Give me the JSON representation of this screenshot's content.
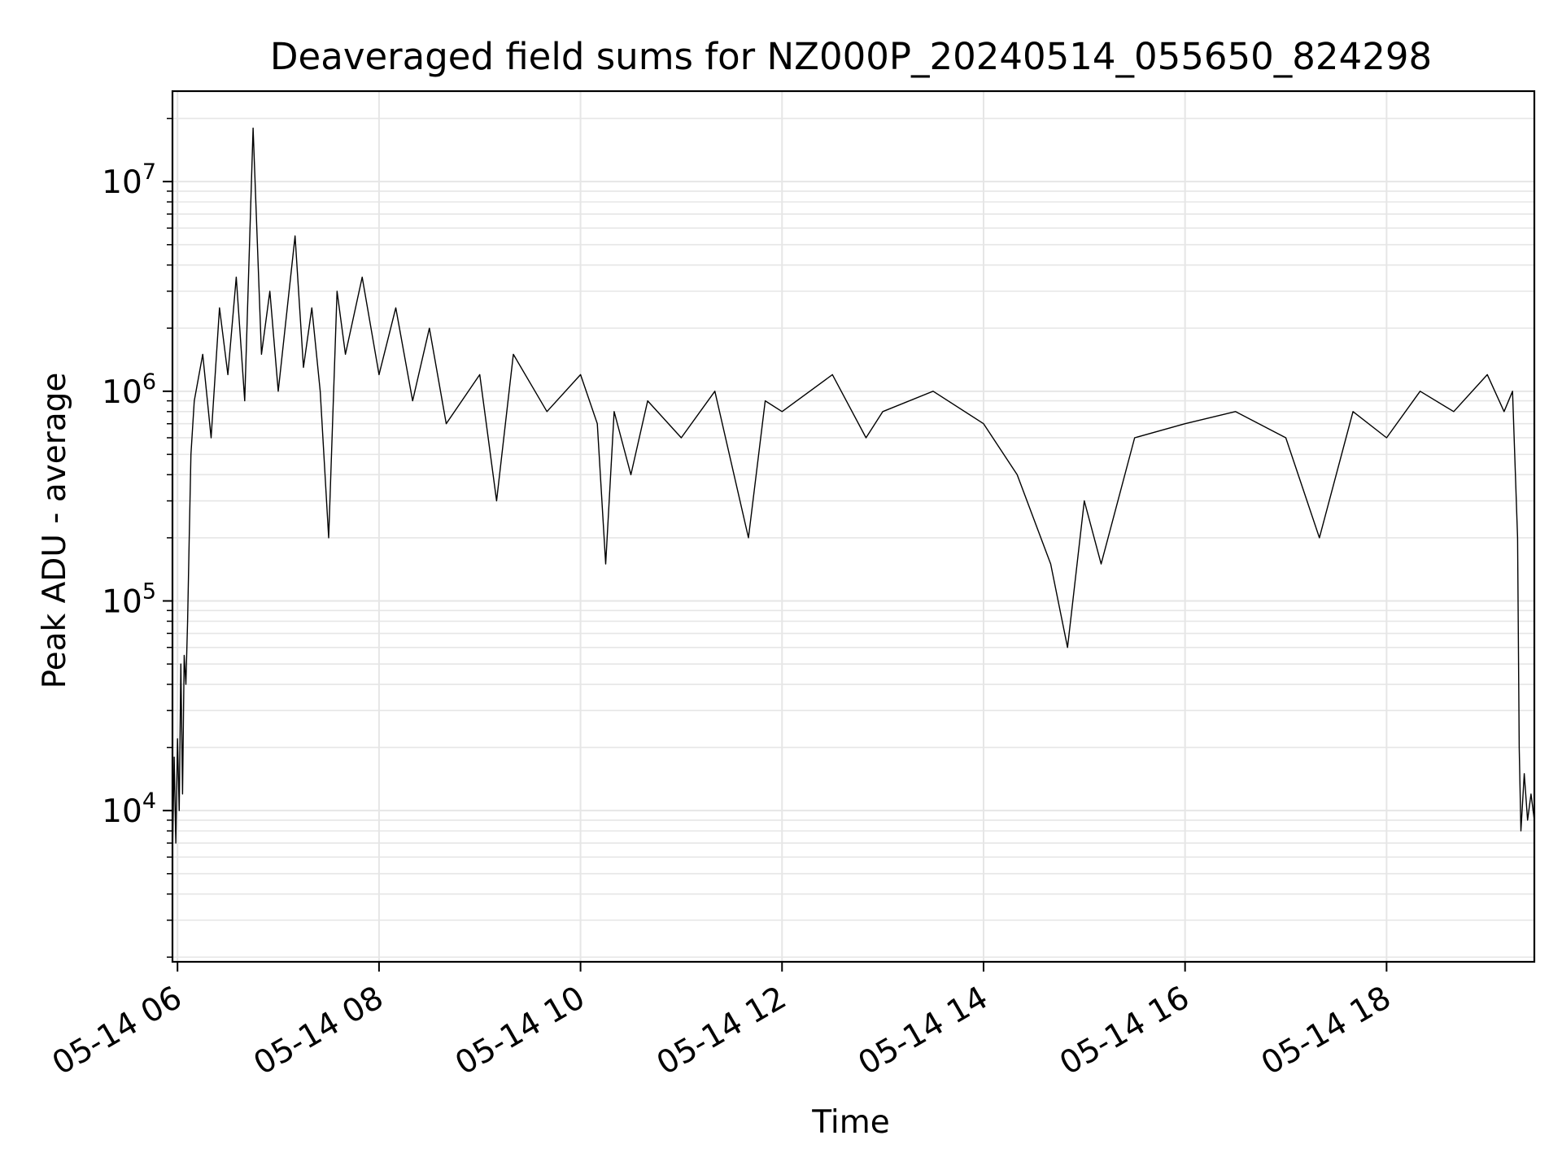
{
  "chart_data": {
    "type": "line",
    "title": "Deaveraged field sums for NZ000P_20240514_055650_824298",
    "xlabel": "Time",
    "ylabel": "Peak ADU - average",
    "x_scale": "time",
    "y_scale": "log",
    "grid": true,
    "xlim": [
      "2024-05-14 05:57",
      "2024-05-14 19:28"
    ],
    "ylim": [
      1900,
      27000000
    ],
    "x_ticks": [
      {
        "value": "2024-05-14 06:00",
        "label": "05-14 06"
      },
      {
        "value": "2024-05-14 08:00",
        "label": "05-14 08"
      },
      {
        "value": "2024-05-14 10:00",
        "label": "05-14 10"
      },
      {
        "value": "2024-05-14 12:00",
        "label": "05-14 12"
      },
      {
        "value": "2024-05-14 14:00",
        "label": "05-14 14"
      },
      {
        "value": "2024-05-14 16:00",
        "label": "05-14 16"
      },
      {
        "value": "2024-05-14 18:00",
        "label": "05-14 18"
      }
    ],
    "y_ticks": [
      {
        "value": 10000,
        "base": "10",
        "exp": "4"
      },
      {
        "value": 100000,
        "base": "10",
        "exp": "5"
      },
      {
        "value": 1000000,
        "base": "10",
        "exp": "6"
      },
      {
        "value": 10000000,
        "base": "10",
        "exp": "7"
      }
    ],
    "series": [
      {
        "color": "#000000",
        "points": [
          [
            "2024-05-14 05:57",
            6000
          ],
          [
            "2024-05-14 05:58",
            18000
          ],
          [
            "2024-05-14 05:59",
            7000
          ],
          [
            "2024-05-14 06:00",
            22000
          ],
          [
            "2024-05-14 06:01",
            10000
          ],
          [
            "2024-05-14 06:02",
            50000
          ],
          [
            "2024-05-14 06:03",
            12000
          ],
          [
            "2024-05-14 06:04",
            55000
          ],
          [
            "2024-05-14 06:05",
            40000
          ],
          [
            "2024-05-14 06:06",
            80000
          ],
          [
            "2024-05-14 06:07",
            200000
          ],
          [
            "2024-05-14 06:08",
            500000
          ],
          [
            "2024-05-14 06:10",
            900000
          ],
          [
            "2024-05-14 06:15",
            1500000
          ],
          [
            "2024-05-14 06:20",
            600000
          ],
          [
            "2024-05-14 06:25",
            2500000
          ],
          [
            "2024-05-14 06:30",
            1200000
          ],
          [
            "2024-05-14 06:35",
            3500000
          ],
          [
            "2024-05-14 06:40",
            900000
          ],
          [
            "2024-05-14 06:45",
            18000000
          ],
          [
            "2024-05-14 06:50",
            1500000
          ],
          [
            "2024-05-14 06:55",
            3000000
          ],
          [
            "2024-05-14 07:00",
            1000000
          ],
          [
            "2024-05-14 07:10",
            5500000
          ],
          [
            "2024-05-14 07:15",
            1300000
          ],
          [
            "2024-05-14 07:20",
            2500000
          ],
          [
            "2024-05-14 07:25",
            1000000
          ],
          [
            "2024-05-14 07:30",
            200000
          ],
          [
            "2024-05-14 07:35",
            3000000
          ],
          [
            "2024-05-14 07:40",
            1500000
          ],
          [
            "2024-05-14 07:50",
            3500000
          ],
          [
            "2024-05-14 08:00",
            1200000
          ],
          [
            "2024-05-14 08:10",
            2500000
          ],
          [
            "2024-05-14 08:20",
            900000
          ],
          [
            "2024-05-14 08:30",
            2000000
          ],
          [
            "2024-05-14 08:40",
            700000
          ],
          [
            "2024-05-14 09:00",
            1200000
          ],
          [
            "2024-05-14 09:10",
            300000
          ],
          [
            "2024-05-14 09:20",
            1500000
          ],
          [
            "2024-05-14 09:40",
            800000
          ],
          [
            "2024-05-14 10:00",
            1200000
          ],
          [
            "2024-05-14 10:10",
            700000
          ],
          [
            "2024-05-14 10:15",
            150000
          ],
          [
            "2024-05-14 10:20",
            800000
          ],
          [
            "2024-05-14 10:30",
            400000
          ],
          [
            "2024-05-14 10:40",
            900000
          ],
          [
            "2024-05-14 11:00",
            600000
          ],
          [
            "2024-05-14 11:20",
            1000000
          ],
          [
            "2024-05-14 11:40",
            200000
          ],
          [
            "2024-05-14 11:50",
            900000
          ],
          [
            "2024-05-14 12:00",
            800000
          ],
          [
            "2024-05-14 12:30",
            1200000
          ],
          [
            "2024-05-14 12:50",
            600000
          ],
          [
            "2024-05-14 13:00",
            800000
          ],
          [
            "2024-05-14 13:30",
            1000000
          ],
          [
            "2024-05-14 14:00",
            700000
          ],
          [
            "2024-05-14 14:20",
            400000
          ],
          [
            "2024-05-14 14:40",
            150000
          ],
          [
            "2024-05-14 14:50",
            60000
          ],
          [
            "2024-05-14 15:00",
            300000
          ],
          [
            "2024-05-14 15:10",
            150000
          ],
          [
            "2024-05-14 15:30",
            600000
          ],
          [
            "2024-05-14 16:00",
            700000
          ],
          [
            "2024-05-14 16:30",
            800000
          ],
          [
            "2024-05-14 17:00",
            600000
          ],
          [
            "2024-05-14 17:20",
            200000
          ],
          [
            "2024-05-14 17:40",
            800000
          ],
          [
            "2024-05-14 18:00",
            600000
          ],
          [
            "2024-05-14 18:20",
            1000000
          ],
          [
            "2024-05-14 18:40",
            800000
          ],
          [
            "2024-05-14 19:00",
            1200000
          ],
          [
            "2024-05-14 19:10",
            800000
          ],
          [
            "2024-05-14 19:15",
            1000000
          ],
          [
            "2024-05-14 19:18",
            200000
          ],
          [
            "2024-05-14 19:19",
            20000
          ],
          [
            "2024-05-14 19:20",
            8000
          ],
          [
            "2024-05-14 19:22",
            15000
          ],
          [
            "2024-05-14 19:24",
            9000
          ],
          [
            "2024-05-14 19:26",
            12000
          ],
          [
            "2024-05-14 19:28",
            9000
          ]
        ]
      }
    ]
  }
}
